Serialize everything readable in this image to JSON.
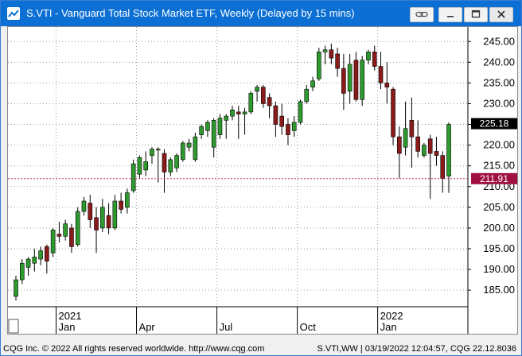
{
  "window": {
    "title": "S.VTI - Vanguard Total Stock Market ETF, Weekly (Delayed by 15 mins)"
  },
  "price_axis": {
    "ticks": [
      "245.00",
      "240.00",
      "235.00",
      "230.00",
      "225.00",
      "220.00",
      "215.00",
      "210.00",
      "205.00",
      "200.00",
      "195.00",
      "190.00",
      "185.00"
    ],
    "last_price": "225.18",
    "reference_price": "211.91",
    "last_price_color": "#000000",
    "reference_price_color": "#a01040"
  },
  "time_axis": {
    "years": [
      "2021",
      "2022"
    ],
    "months": [
      "Jan",
      "Apr",
      "Jul",
      "Oct",
      "Jan"
    ]
  },
  "colors": {
    "up_candle": "#2e9a2e",
    "down_candle": "#8b1a1a",
    "titlebar": "#0b6fd3"
  },
  "chart_data": {
    "type": "candlestick",
    "symbol": "S.VTI",
    "interval": "Weekly",
    "y_range": [
      181,
      248.5
    ],
    "candles": [
      {
        "o": 183.5,
        "h": 188.5,
        "l": 182.5,
        "c": 187.5
      },
      {
        "o": 187.5,
        "h": 192.5,
        "l": 186.5,
        "c": 191.5
      },
      {
        "o": 190.5,
        "h": 193.0,
        "l": 188.5,
        "c": 192.5
      },
      {
        "o": 191.5,
        "h": 195.0,
        "l": 189.5,
        "c": 193.0
      },
      {
        "o": 192.5,
        "h": 195.5,
        "l": 191.0,
        "c": 194.5
      },
      {
        "o": 195.5,
        "h": 196.0,
        "l": 189.0,
        "c": 192.0
      },
      {
        "o": 194.0,
        "h": 200.0,
        "l": 193.0,
        "c": 199.5
      },
      {
        "o": 198.5,
        "h": 201.5,
        "l": 196.5,
        "c": 198.0
      },
      {
        "o": 198.0,
        "h": 202.0,
        "l": 197.0,
        "c": 201.0
      },
      {
        "o": 200.0,
        "h": 201.0,
        "l": 194.0,
        "c": 195.5
      },
      {
        "o": 196.0,
        "h": 205.0,
        "l": 195.5,
        "c": 204.0
      },
      {
        "o": 204.0,
        "h": 207.5,
        "l": 203.0,
        "c": 206.5
      },
      {
        "o": 206.0,
        "h": 208.0,
        "l": 200.0,
        "c": 202.0
      },
      {
        "o": 202.5,
        "h": 205.0,
        "l": 194.0,
        "c": 199.5
      },
      {
        "o": 200.0,
        "h": 207.0,
        "l": 199.0,
        "c": 205.0
      },
      {
        "o": 203.0,
        "h": 206.0,
        "l": 198.5,
        "c": 200.0
      },
      {
        "o": 200.0,
        "h": 208.0,
        "l": 199.5,
        "c": 206.5
      },
      {
        "o": 206.5,
        "h": 208.5,
        "l": 203.5,
        "c": 204.5
      },
      {
        "o": 205.0,
        "h": 209.5,
        "l": 203.5,
        "c": 208.5
      },
      {
        "o": 209.0,
        "h": 216.5,
        "l": 208.5,
        "c": 215.5
      },
      {
        "o": 213.0,
        "h": 217.5,
        "l": 212.0,
        "c": 217.0
      },
      {
        "o": 214.0,
        "h": 218.5,
        "l": 212.5,
        "c": 216.0
      },
      {
        "o": 217.5,
        "h": 219.5,
        "l": 215.5,
        "c": 219.0
      },
      {
        "o": 219.0,
        "h": 219.5,
        "l": 211.0,
        "c": 219.0
      },
      {
        "o": 218.0,
        "h": 219.0,
        "l": 208.5,
        "c": 213.5
      },
      {
        "o": 213.5,
        "h": 217.0,
        "l": 212.5,
        "c": 216.5
      },
      {
        "o": 214.5,
        "h": 218.0,
        "l": 213.5,
        "c": 217.5
      },
      {
        "o": 216.5,
        "h": 221.0,
        "l": 216.0,
        "c": 220.5
      },
      {
        "o": 219.5,
        "h": 221.5,
        "l": 218.5,
        "c": 220.5
      },
      {
        "o": 216.5,
        "h": 223.0,
        "l": 216.0,
        "c": 222.0
      },
      {
        "o": 222.5,
        "h": 225.0,
        "l": 221.5,
        "c": 224.5
      },
      {
        "o": 223.5,
        "h": 226.0,
        "l": 222.0,
        "c": 225.5
      },
      {
        "o": 219.5,
        "h": 226.5,
        "l": 217.0,
        "c": 226.0
      },
      {
        "o": 222.5,
        "h": 227.5,
        "l": 221.5,
        "c": 226.5
      },
      {
        "o": 226.0,
        "h": 227.5,
        "l": 221.5,
        "c": 227.0
      },
      {
        "o": 227.0,
        "h": 229.5,
        "l": 226.0,
        "c": 228.5
      },
      {
        "o": 228.0,
        "h": 229.5,
        "l": 221.5,
        "c": 227.5
      },
      {
        "o": 227.5,
        "h": 229.0,
        "l": 222.5,
        "c": 228.0
      },
      {
        "o": 228.0,
        "h": 233.0,
        "l": 227.5,
        "c": 232.5
      },
      {
        "o": 233.0,
        "h": 234.5,
        "l": 230.5,
        "c": 234.0
      },
      {
        "o": 234.0,
        "h": 234.5,
        "l": 229.0,
        "c": 230.0
      },
      {
        "o": 231.5,
        "h": 232.5,
        "l": 226.5,
        "c": 229.5
      },
      {
        "o": 229.5,
        "h": 230.5,
        "l": 222.0,
        "c": 225.0
      },
      {
        "o": 227.0,
        "h": 230.0,
        "l": 222.5,
        "c": 224.5
      },
      {
        "o": 225.0,
        "h": 226.5,
        "l": 220.0,
        "c": 222.5
      },
      {
        "o": 223.5,
        "h": 227.0,
        "l": 222.0,
        "c": 225.5
      },
      {
        "o": 225.5,
        "h": 231.0,
        "l": 225.0,
        "c": 230.5
      },
      {
        "o": 230.5,
        "h": 234.5,
        "l": 230.0,
        "c": 233.5
      },
      {
        "o": 234.0,
        "h": 236.5,
        "l": 233.0,
        "c": 235.5
      },
      {
        "o": 236.0,
        "h": 243.5,
        "l": 235.5,
        "c": 242.5
      },
      {
        "o": 242.5,
        "h": 244.0,
        "l": 239.5,
        "c": 243.0
      },
      {
        "o": 243.0,
        "h": 244.5,
        "l": 239.5,
        "c": 241.0
      },
      {
        "o": 242.0,
        "h": 243.5,
        "l": 236.5,
        "c": 238.5
      },
      {
        "o": 238.5,
        "h": 242.0,
        "l": 228.5,
        "c": 232.5
      },
      {
        "o": 233.0,
        "h": 242.0,
        "l": 230.0,
        "c": 239.5
      },
      {
        "o": 240.5,
        "h": 242.5,
        "l": 230.5,
        "c": 231.0
      },
      {
        "o": 231.0,
        "h": 241.5,
        "l": 229.5,
        "c": 240.5
      },
      {
        "o": 240.5,
        "h": 243.0,
        "l": 239.5,
        "c": 242.5
      },
      {
        "o": 242.5,
        "h": 244.0,
        "l": 238.0,
        "c": 239.0
      },
      {
        "o": 239.0,
        "h": 242.5,
        "l": 233.5,
        "c": 235.0
      },
      {
        "o": 235.0,
        "h": 240.0,
        "l": 230.0,
        "c": 234.0
      },
      {
        "o": 233.5,
        "h": 234.0,
        "l": 220.0,
        "c": 222.0
      },
      {
        "o": 222.0,
        "h": 224.5,
        "l": 212.0,
        "c": 218.0
      },
      {
        "o": 219.5,
        "h": 230.5,
        "l": 217.5,
        "c": 224.0
      },
      {
        "o": 226.0,
        "h": 231.5,
        "l": 214.5,
        "c": 222.0
      },
      {
        "o": 222.0,
        "h": 226.0,
        "l": 217.0,
        "c": 218.5
      },
      {
        "o": 217.5,
        "h": 220.5,
        "l": 217.0,
        "c": 220.0
      },
      {
        "o": 221.5,
        "h": 222.5,
        "l": 207.0,
        "c": 218.0
      },
      {
        "o": 218.5,
        "h": 222.0,
        "l": 215.0,
        "c": 217.5
      },
      {
        "o": 217.5,
        "h": 218.5,
        "l": 208.5,
        "c": 212.0
      },
      {
        "o": 212.5,
        "h": 225.5,
        "l": 208.5,
        "c": 225.0
      }
    ]
  },
  "status_bar": {
    "copyright": "CQG Inc. © 2022 All rights reserved worldwide. http://www.cqg.com",
    "info": "S.VTI,WW | 03/19/2022 12:04:57, CQG 22.12.8036"
  }
}
